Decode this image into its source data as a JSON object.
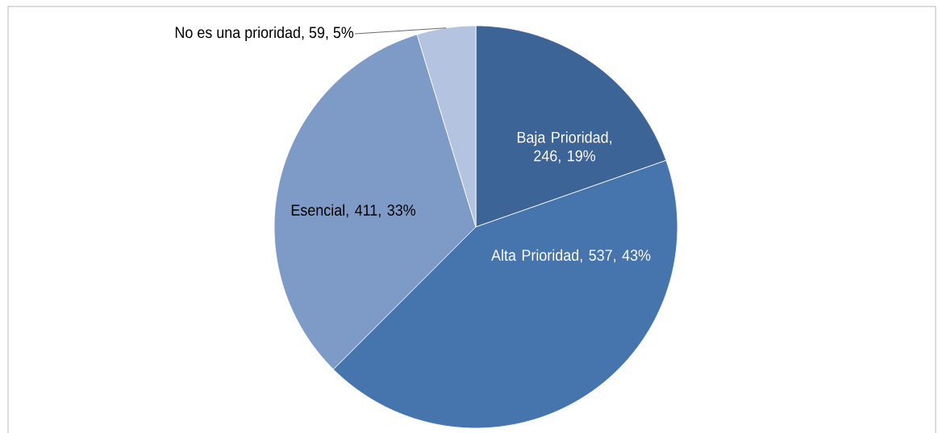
{
  "chart_data": {
    "type": "pie",
    "categories": [
      "Baja Prioridad",
      "Alta Prioridad",
      "Esencial",
      "No es una prioridad"
    ],
    "values": [
      246,
      537,
      411,
      59
    ],
    "value_labels": [
      ", 246, 19%",
      ", 537, 43%",
      ", 411, 33%",
      ", 59, 5%"
    ],
    "colors": [
      "#3d6496",
      "#4675ae",
      "#7e9bc8",
      "#b4c3df"
    ]
  }
}
